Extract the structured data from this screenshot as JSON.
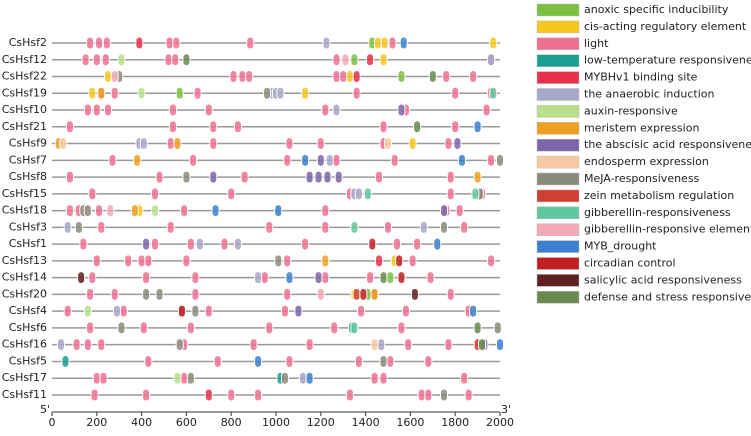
{
  "chart_data": {
    "type": "promoter",
    "start_label": "5'",
    "end_label": "3'",
    "categories": [
      "CsHsf2",
      "CsHsf12",
      "CsHsf22",
      "CsHsf19",
      "CsHsf10",
      "CsHsf21",
      "CsHsf9",
      "CsHsf7",
      "CsHsf8",
      "CsHsf15",
      "CsHsf18",
      "CsHsf3",
      "CsHsf1",
      "CsHsf13",
      "CsHsf14",
      "CsHsf20",
      "CsHsf4",
      "CsHsf6",
      "CsHsf16",
      "CsHsf5",
      "CsHsf17",
      "CsHsf11"
    ],
    "xlim": [
      0,
      2000
    ],
    "xticks": [
      0,
      200,
      400,
      600,
      800,
      1000,
      1200,
      1400,
      1600,
      1800,
      2000
    ],
    "series": [
      {
        "name": "anoxic specific inducibility",
        "color": "#7ac143",
        "values": [
          [
            1430
          ],
          [
            1350
          ],
          [
            1560
          ],
          [
            570
          ],
          [],
          [],
          [],
          [],
          [],
          [],
          [],
          [],
          [],
          [],
          [
            1510
          ],
          [
            1410
          ],
          [],
          [],
          [],
          [],
          [],
          []
        ]
      },
      {
        "name": "cis-acting regulatory element",
        "color": "#f5c820",
        "values": [
          [
            1455,
            1485,
            1970
          ],
          [
            1480
          ],
          [
            250,
            1330
          ],
          [
            180,
            1130
          ],
          [],
          [],
          [
            1610
          ],
          [],
          [],
          [],
          [
            390
          ],
          [],
          [],
          [
            1530
          ],
          [],
          [
            1350
          ],
          [],
          [],
          [],
          [],
          [],
          []
        ]
      },
      {
        "name": "light",
        "color": "#f07090",
        "values": [
          [
            170,
            210,
            245,
            525,
            555,
            885,
            1520
          ],
          [
            150,
            200,
            240,
            520,
            550,
            1270,
            1960
          ],
          [
            810,
            850,
            880,
            1270,
            1300,
            1760,
            1880
          ],
          [
            220,
            280,
            650,
            1360,
            1800,
            1960
          ],
          [
            160,
            200,
            250,
            540,
            700,
            1220,
            1580,
            1940
          ],
          [
            80,
            540,
            720,
            830,
            1480,
            1800
          ],
          [
            530,
            720,
            1060,
            1200,
            1480,
            1770
          ],
          [
            270,
            630,
            1050,
            1270,
            1530,
            1960
          ],
          [
            80,
            480,
            860,
            1460,
            1780
          ],
          [
            180,
            460,
            800,
            1330,
            1780,
            1920
          ],
          [
            80,
            120,
            210,
            590,
            1220,
            1760,
            1820
          ],
          [
            220,
            530,
            970,
            1220,
            1500,
            1840
          ],
          [
            140,
            460,
            620,
            770,
            1130,
            1540,
            1630
          ],
          [
            200,
            340,
            400,
            430,
            600,
            1050,
            1610,
            1960
          ],
          [
            180,
            420,
            640,
            950,
            1220,
            1420,
            1690
          ],
          [
            170,
            280,
            640,
            1050,
            1440,
            1780
          ],
          [
            70,
            320,
            580,
            700,
            1040,
            1380,
            1580,
            1860
          ],
          [
            170,
            410,
            620,
            970,
            1260,
            1560
          ],
          [
            110,
            160,
            220,
            590,
            900,
            1150,
            1590,
            1770
          ],
          [
            430,
            740,
            1060,
            1370,
            1510,
            1680
          ],
          [
            200,
            230,
            590,
            1440,
            1480,
            1840
          ],
          [
            190,
            420,
            800,
            920,
            1330,
            1650,
            1680,
            1860
          ]
        ]
      },
      {
        "name": "low-temperature responsiveness",
        "color": "#1a9e8f",
        "values": [
          [],
          [],
          [],
          [],
          [],
          [],
          [],
          [],
          [],
          [],
          [],
          [],
          [],
          [],
          [],
          [],
          [],
          [
            1340
          ],
          [],
          [
            60
          ],
          [
            1020
          ],
          []
        ]
      },
      {
        "name": "MYBHv1 binding site",
        "color": "#e8304a",
        "values": [
          [
            390
          ],
          [
            1420
          ],
          [
            1360
          ],
          [],
          [],
          [],
          [],
          [],
          [],
          [],
          [],
          [],
          [],
          [
            1460
          ],
          [],
          [],
          [],
          [],
          [],
          [],
          [],
          [
            700
          ]
        ]
      },
      {
        "name": "the anaerobic induction",
        "color": "#a7a7c8",
        "values": [
          [
            1225
          ],
          [
            1960
          ],
          [],
          [
            980,
            1000,
            1020
          ],
          [
            1270
          ],
          [],
          [
            390,
            410
          ],
          [
            1240
          ],
          [],
          [
            1350,
            1370
          ],
          [],
          [
            70,
            1660
          ],
          [
            660,
            830
          ],
          [],
          [
            920
          ],
          [],
          [
            290
          ],
          [],
          [
            40,
            1470
          ],
          [],
          [
            1120
          ],
          []
        ]
      },
      {
        "name": "auxin-responsive",
        "color": "#b8e08a",
        "values": [
          [],
          [
            310
          ],
          [],
          [
            400
          ],
          [],
          [],
          [],
          [],
          [],
          [],
          [
            460
          ],
          [],
          [],
          [],
          [],
          [],
          [
            160
          ],
          [],
          [],
          [],
          [
            560
          ],
          []
        ]
      },
      {
        "name": "meristem expression",
        "color": "#f0a020",
        "values": [
          [],
          [],
          [],
          [
            220
          ],
          [],
          [],
          [
            30,
            560
          ],
          [
            380
          ],
          [
            1900
          ],
          [],
          [
            370
          ],
          [],
          [],
          [
            1220
          ],
          [],
          [
            1440
          ],
          [],
          [],
          [],
          [],
          [],
          []
        ]
      },
      {
        "name": "the abscisic acid responsiveness",
        "color": "#7e64a8",
        "values": [
          [],
          [],
          [],
          [],
          [
            1560
          ],
          [],
          [
            1810
          ],
          [
            1200
          ],
          [
            720,
            1150,
            1190,
            1230,
            1280
          ],
          [],
          [
            1750
          ],
          [],
          [
            420
          ],
          [],
          [
            1190
          ],
          [],
          [
            1100
          ],
          [],
          [
            1930
          ],
          [],
          [],
          []
        ]
      },
      {
        "name": "endosperm expression",
        "color": "#f8c8a0",
        "values": [
          [],
          [],
          [],
          [],
          [],
          [],
          [
            50,
            1500
          ],
          [],
          [],
          [],
          [],
          [],
          [],
          [],
          [],
          [],
          [],
          [],
          [
            1440
          ],
          [],
          [],
          []
        ]
      },
      {
        "name": "MeJA-responsiveness",
        "color": "#8a8a7a",
        "values": [
          [],
          [],
          [
            300
          ],
          [
            960
          ],
          [],
          [],
          [],
          [
            2000
          ],
          [
            600
          ],
          [
            1910
          ],
          [
            140,
            160
          ],
          [
            120,
            1750
          ],
          [],
          [
            1010
          ],
          [],
          [
            420,
            480
          ],
          [
            640
          ],
          [
            310,
            1990
          ],
          [
            570
          ],
          [
            1480
          ],
          [
            620,
            1040
          ],
          [
            1750
          ]
        ]
      },
      {
        "name": "zein metabolism regulation",
        "color": "#d04030",
        "values": [
          [],
          [],
          [],
          [],
          [],
          [],
          [],
          [],
          [],
          [],
          [],
          [],
          [],
          [],
          [],
          [
            1360
          ],
          [],
          [],
          [
            1900
          ],
          [],
          [],
          []
        ]
      },
      {
        "name": "gibberellin-responsiveness",
        "color": "#60c8a0",
        "values": [
          [],
          [],
          [],
          [
            1970
          ],
          [],
          [],
          [],
          [],
          [],
          [
            1410,
            1890
          ],
          [],
          [
            1350
          ],
          [],
          [],
          [],
          [],
          [],
          [
            1350
          ],
          [],
          [],
          [],
          []
        ]
      },
      {
        "name": "gibberellin-responsive element",
        "color": "#f4a8b8",
        "values": [
          [],
          [
            1310
          ],
          [
            280
          ],
          [],
          [],
          [],
          [],
          [],
          [],
          [],
          [
            260
          ],
          [],
          [],
          [],
          [],
          [
            1200
          ],
          [],
          [],
          [],
          [],
          [],
          []
        ]
      },
      {
        "name": "MYB_drought",
        "color": "#3a80d0",
        "values": [
          [
            1570
          ],
          [],
          [],
          [],
          [],
          [
            1900
          ],
          [],
          [
            1130,
            1830
          ],
          [],
          [],
          [
            730,
            1010
          ],
          [],
          [
            1720
          ],
          [],
          [
            1060
          ],
          [],
          [
            1880
          ],
          [],
          [
            2000
          ],
          [
            920
          ],
          [
            1150
          ],
          []
        ]
      },
      {
        "name": "circadian control",
        "color": "#c02020",
        "values": [
          [],
          [],
          [],
          [],
          [],
          [],
          [],
          [],
          [],
          [],
          [],
          [],
          [
            1430
          ],
          [
            1550
          ],
          [
            1560
          ],
          [
            1390
          ],
          [
            580
          ],
          [],
          [],
          [],
          [],
          []
        ]
      },
      {
        "name": "salicylic acid responsiveness",
        "color": "#602020",
        "values": [
          [],
          [],
          [],
          [],
          [],
          [],
          [],
          [],
          [],
          [],
          [],
          [],
          [],
          [],
          [
            130
          ],
          [
            1620
          ],
          [],
          [],
          [],
          [],
          [],
          []
        ]
      },
      {
        "name": "defense and stress responsiveness",
        "color": "#6a8a50",
        "values": [
          [],
          [
            600
          ],
          [
            1700
          ],
          [],
          [],
          [
            1630
          ],
          [],
          [],
          [],
          [],
          [],
          [],
          [],
          [],
          [
            1480
          ],
          [],
          [],
          [
            1900
          ],
          [
            1920
          ],
          [],
          [],
          []
        ]
      }
    ]
  }
}
